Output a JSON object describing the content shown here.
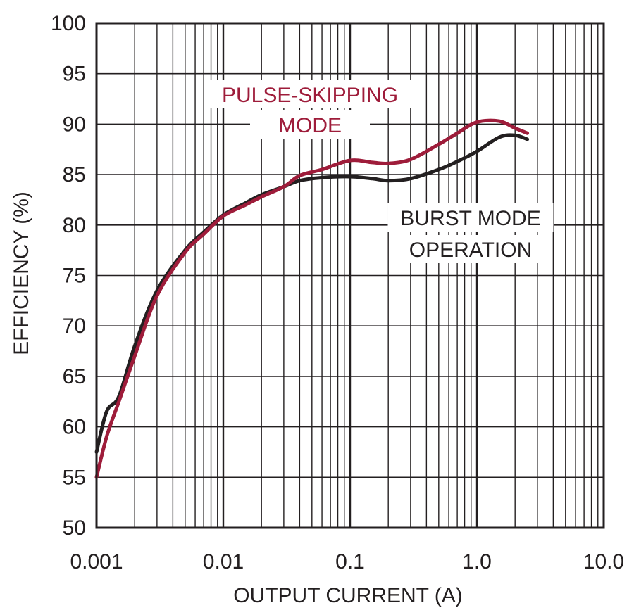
{
  "chart_data": {
    "type": "line",
    "xlabel": "OUTPUT CURRENT (A)",
    "ylabel": "EFFICIENCY (%)",
    "xscale": "log",
    "xlim": [
      0.001,
      10.0
    ],
    "ylim": [
      50,
      100
    ],
    "x_tick_labels": [
      "0.001",
      "0.01",
      "0.1",
      "1.0",
      "10.0"
    ],
    "y_tick_labels": [
      "50",
      "55",
      "60",
      "65",
      "70",
      "75",
      "80",
      "85",
      "90",
      "95",
      "100"
    ],
    "grid": true,
    "annotations": [
      {
        "lines": [
          "PULSE-SKIPPING",
          "MODE"
        ],
        "color": "#9e1c3a"
      },
      {
        "lines": [
          "BURST MODE",
          "OPERATION"
        ],
        "color": "#231f20"
      }
    ],
    "series": [
      {
        "name": "BURST MODE OPERATION",
        "color": "#231f20",
        "x": [
          0.001,
          0.0012,
          0.0015,
          0.002,
          0.003,
          0.005,
          0.007,
          0.01,
          0.015,
          0.02,
          0.03,
          0.04,
          0.06,
          0.1,
          0.15,
          0.2,
          0.3,
          0.5,
          0.7,
          1.0,
          1.5,
          2.0,
          2.5
        ],
        "values": [
          57.5,
          61.5,
          63.0,
          68.0,
          73.5,
          77.5,
          79.3,
          81.0,
          82.2,
          83.0,
          83.8,
          84.4,
          84.7,
          84.8,
          84.6,
          84.4,
          84.6,
          85.5,
          86.3,
          87.3,
          88.7,
          88.9,
          88.5
        ]
      },
      {
        "name": "PULSE-SKIPPING MODE",
        "color": "#9e1c3a",
        "x": [
          0.001,
          0.0012,
          0.0015,
          0.002,
          0.003,
          0.005,
          0.007,
          0.01,
          0.015,
          0.02,
          0.03,
          0.04,
          0.06,
          0.1,
          0.15,
          0.2,
          0.3,
          0.5,
          0.7,
          1.0,
          1.5,
          2.0,
          2.5
        ],
        "values": [
          55.0,
          59.0,
          62.5,
          67.0,
          73.0,
          77.3,
          79.1,
          80.9,
          82.0,
          82.8,
          83.8,
          84.9,
          85.5,
          86.4,
          86.2,
          86.1,
          86.5,
          88.0,
          89.1,
          90.2,
          90.3,
          89.6,
          89.1
        ]
      }
    ]
  }
}
